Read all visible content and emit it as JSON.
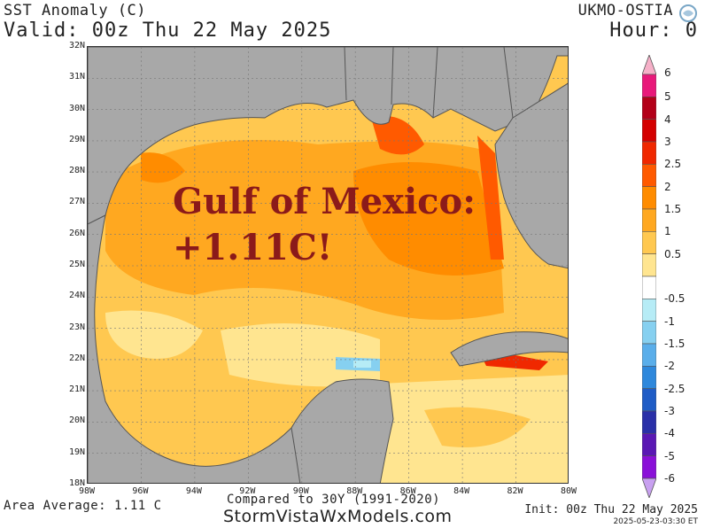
{
  "header": {
    "title": "SST Anomaly (C)",
    "valid": "Valid: 00z Thu 22 May 2025",
    "model": "UKMO-OSTIA",
    "hour": "Hour: 0"
  },
  "map": {
    "region": "Gulf of Mexico",
    "lat_labels": [
      "32N",
      "31N",
      "30N",
      "29N",
      "28N",
      "27N",
      "26N",
      "25N",
      "24N",
      "23N",
      "22N",
      "21N",
      "20N",
      "19N",
      "18N"
    ],
    "lon_labels": [
      "98W",
      "96W",
      "94W",
      "92W",
      "90W",
      "88W",
      "86W",
      "84W",
      "82W",
      "80W"
    ],
    "annotation_line1": "Gulf of Mexico:",
    "annotation_line2": "+1.11C!",
    "land_color": "#a8a8a8",
    "border_color": "#555555"
  },
  "colorbar": {
    "labels": [
      "6",
      "5",
      "4",
      "3",
      "2.5",
      "2",
      "1.5",
      "1",
      "0.5",
      "-0.5",
      "-1",
      "-1.5",
      "-2",
      "-2.5",
      "-3",
      "-4",
      "-5",
      "-6"
    ],
    "colors": [
      "#e8197a",
      "#b30019",
      "#d40000",
      "#f02800",
      "#ff5a00",
      "#ff8c00",
      "#ffa820",
      "#ffc850",
      "#ffe590",
      "#ffffff",
      "#b6ecf6",
      "#86d0f0",
      "#5aaeea",
      "#2e88dc",
      "#1f5cc6",
      "#2a30a8",
      "#5a18b4",
      "#8a10d8"
    ],
    "top_arrow_color": "#f6b0c8",
    "bottom_arrow_color": "#c8a0f0"
  },
  "footer": {
    "area_average": "Area Average: 1.11 C",
    "compared": "Compared to 30Y (1991-2020)",
    "site": "StormVistaWxModels.com",
    "init": "Init: 00z Thu 22 May 2025",
    "timestamp": "2025-05-23-03:30 ET"
  }
}
